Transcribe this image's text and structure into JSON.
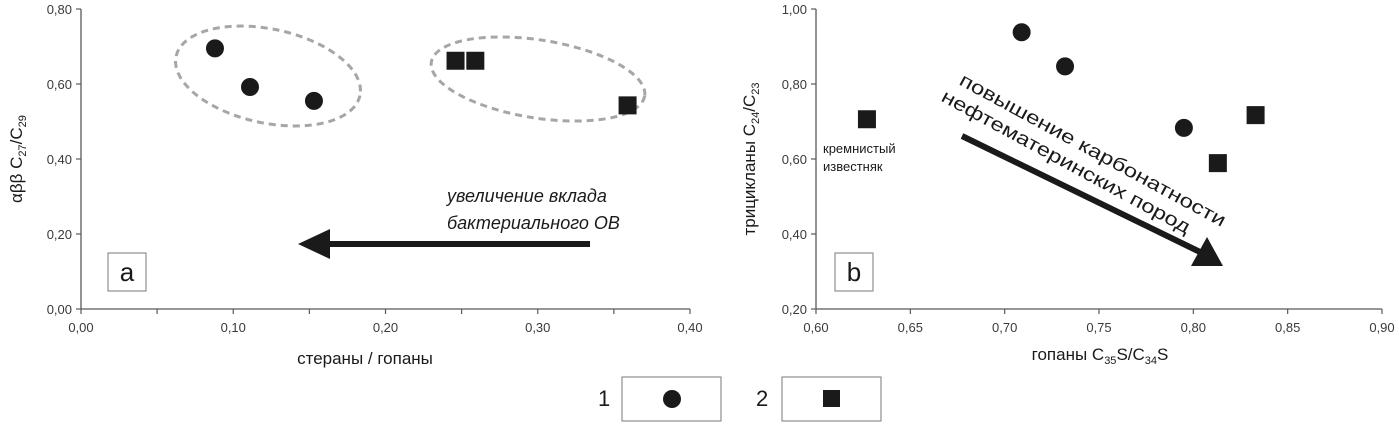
{
  "chart_data": [
    {
      "type": "scatter",
      "panel": "a",
      "xlabel": "стераны / гопаны",
      "ylabel": "αββ C27/C29",
      "ylabel_parts": {
        "pre": "αββ C",
        "sub1": "27",
        "mid": "/C",
        "sub2": "29"
      },
      "xlim": [
        0,
        0.4
      ],
      "ylim": [
        0,
        0.8
      ],
      "xticks": [
        "0,00",
        "0,10",
        "0,20",
        "0,30",
        "0,40"
      ],
      "xtick_values": [
        0,
        0.1,
        0.2,
        0.3,
        0.4
      ],
      "yticks": [
        "0,00",
        "0,20",
        "0,40",
        "0,60",
        "0,80"
      ],
      "ytick_values": [
        0,
        0.2,
        0.4,
        0.6,
        0.8
      ],
      "series": [
        {
          "name": "1",
          "marker": "circle",
          "points": [
            [
              0.088,
              0.695
            ],
            [
              0.111,
              0.592
            ],
            [
              0.153,
              0.555
            ]
          ]
        },
        {
          "name": "2",
          "marker": "square",
          "points": [
            [
              0.246,
              0.662
            ],
            [
              0.259,
              0.662
            ],
            [
              0.359,
              0.543
            ]
          ]
        }
      ],
      "annotation_lines": [
        "увеличение вклада",
        "бактериального ОВ"
      ]
    },
    {
      "type": "scatter",
      "panel": "b",
      "xlabel": "гопаны C35S/C34S",
      "xlabel_parts": {
        "pre": "гопаны C",
        "sub1": "35",
        "mid": "S/C",
        "sub2": "34",
        "post": "S"
      },
      "ylabel": "трицикланы C24/C23",
      "ylabel_parts": {
        "pre": "трицикланы C",
        "sub1": "24",
        "mid": "/C",
        "sub2": "23"
      },
      "xlim": [
        0.6,
        0.9
      ],
      "ylim": [
        0.2,
        1.0
      ],
      "xticks": [
        "0,60",
        "0,65",
        "0,70",
        "0,75",
        "0,80",
        "0,85",
        "0,90"
      ],
      "xtick_values": [
        0.6,
        0.65,
        0.7,
        0.75,
        0.8,
        0.85,
        0.9
      ],
      "yticks": [
        "0,20",
        "0,40",
        "0,60",
        "0,80",
        "1,00"
      ],
      "ytick_values": [
        0.2,
        0.4,
        0.6,
        0.8,
        1.0
      ],
      "series": [
        {
          "name": "1",
          "marker": "circle",
          "points": [
            [
              0.709,
              0.938
            ],
            [
              0.732,
              0.847
            ],
            [
              0.795,
              0.683
            ]
          ]
        },
        {
          "name": "2",
          "marker": "square",
          "points": [
            [
              0.627,
              0.706
            ],
            [
              0.813,
              0.589
            ],
            [
              0.833,
              0.717
            ]
          ]
        }
      ],
      "annotation_lines": [
        "повышение карбонатности",
        "нефтематеринских пород"
      ],
      "point_label_lines": [
        "кремнистый",
        "известняк"
      ]
    }
  ],
  "legend": [
    {
      "label": "1",
      "marker": "circle"
    },
    {
      "label": "2",
      "marker": "square"
    }
  ],
  "colors": {
    "marker": "#1a1a1a",
    "ellipse": "#a6a6a6",
    "axis": "#595959"
  }
}
